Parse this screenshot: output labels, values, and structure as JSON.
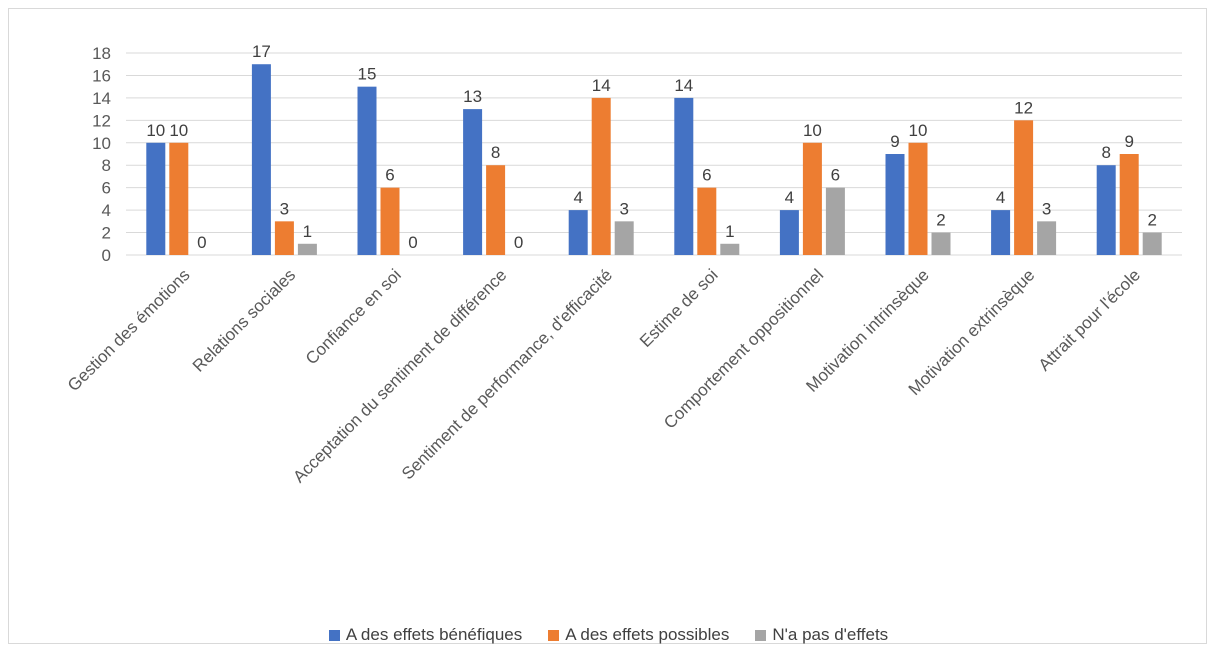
{
  "chart_data": {
    "type": "bar",
    "categories": [
      "Gestion des émotions",
      "Relations sociales",
      "Confiance en soi",
      "Acceptation du sentiment de différence",
      "Sentiment de performance, d'efficacité",
      "Estime de soi",
      "Comportement oppositionnel",
      "Motivation intrinsèque",
      "Motivation extrinsèque",
      "Attrait pour l'école"
    ],
    "series": [
      {
        "name": "A des effets bénéfiques",
        "color": "#4472c4",
        "values": [
          10,
          17,
          15,
          13,
          4,
          14,
          4,
          9,
          4,
          8
        ]
      },
      {
        "name": "A des effets possibles",
        "color": "#ed7d31",
        "values": [
          10,
          3,
          6,
          8,
          14,
          6,
          10,
          10,
          12,
          9
        ]
      },
      {
        "name": "N'a pas d'effets",
        "color": "#a5a5a5",
        "values": [
          0,
          1,
          0,
          0,
          3,
          1,
          6,
          2,
          3,
          2
        ]
      }
    ],
    "ylim": [
      0,
      18
    ],
    "yticks": [
      0,
      2,
      4,
      6,
      8,
      10,
      12,
      14,
      16,
      18
    ],
    "grid": true,
    "legend": "bottom"
  }
}
